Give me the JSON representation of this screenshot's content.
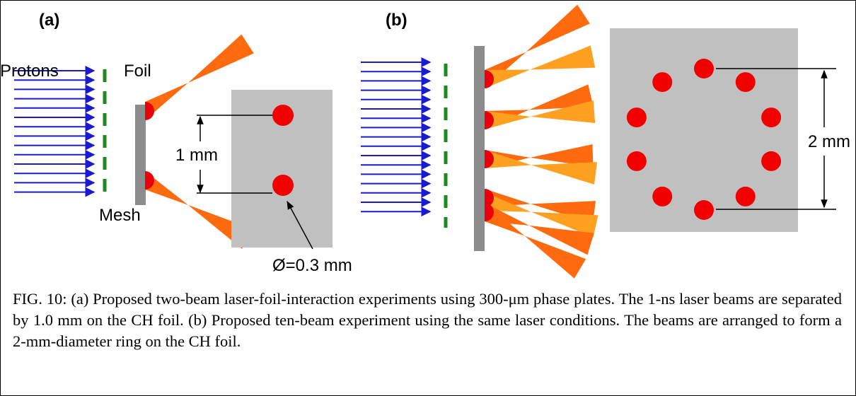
{
  "figure": {
    "panel_a": {
      "label": "(a)",
      "protons": "Protons",
      "foil": "Foil",
      "mesh": "Mesh",
      "separation": "1 mm",
      "diameter": "Ø=0.3 mm"
    },
    "panel_b": {
      "label": "(b)",
      "ring": "2 mm"
    },
    "caption": "FIG. 10: (a) Proposed two-beam laser-foil-interaction experiments using 300-μm phase plates. The 1-ns laser beams are separated by 1.0 mm on the CH foil. (b) Proposed ten-beam experiment using the same laser conditions. The beams are arranged to form a 2-mm-diameter ring on the CH foil."
  }
}
